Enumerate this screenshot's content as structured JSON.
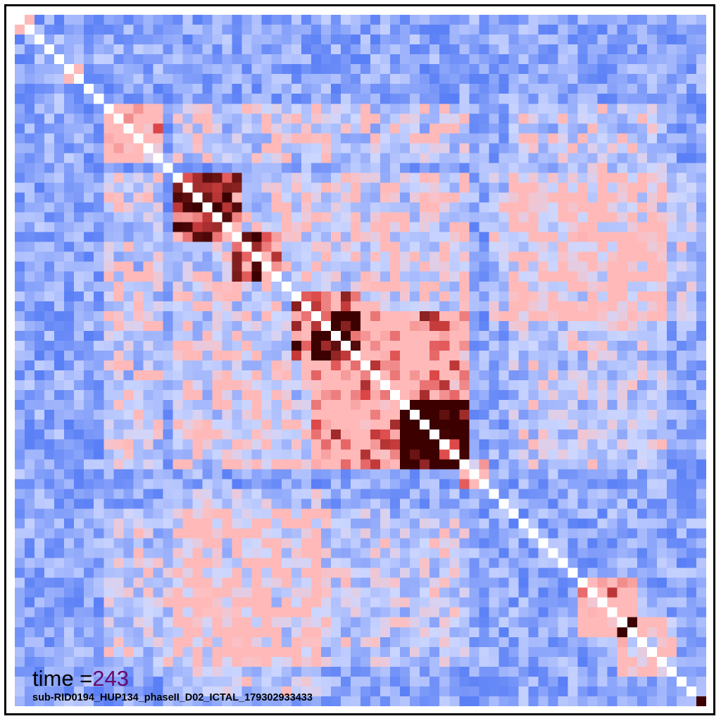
{
  "chart_data": {
    "type": "heatmap",
    "title": "",
    "xlabel": "",
    "ylabel": "",
    "matrix_size": 70,
    "grid": false,
    "colormap": {
      "negative": "#5b7cf5",
      "neutral": "#f2f2ff",
      "positive": "#ffb6b6",
      "strong": "#e05050",
      "max": "#3d0000",
      "diagonal": "#ffffff"
    },
    "clusters": [
      {
        "range": [
          0,
          1
        ],
        "strength": 0.7
      },
      {
        "range": [
          5,
          6
        ],
        "strength": 0.9
      },
      {
        "range": [
          9,
          14
        ],
        "strength": 0.85
      },
      {
        "range": [
          16,
          22
        ],
        "strength": 1.0
      },
      {
        "range": [
          22,
          26
        ],
        "strength": 0.9
      },
      {
        "range": [
          28,
          34
        ],
        "strength": 0.7
      },
      {
        "range": [
          30,
          45
        ],
        "strength": 0.55
      },
      {
        "range": [
          39,
          45
        ],
        "strength": 0.9
      },
      {
        "range": [
          45,
          47
        ],
        "strength": 0.7
      },
      {
        "range": [
          57,
          62
        ],
        "strength": 0.85
      },
      {
        "range": [
          61,
          66
        ],
        "strength": 0.6
      },
      {
        "range": [
          69,
          69
        ],
        "strength": 1.0
      }
    ],
    "cross_blocks": [
      {
        "rows": [
          16,
          45
        ],
        "cols": [
          16,
          45
        ],
        "strength": 0.35
      },
      {
        "rows": [
          9,
          14
        ],
        "cols": [
          16,
          45
        ],
        "strength": 0.3
      },
      {
        "rows": [
          50,
          65
        ],
        "cols": [
          9,
          45
        ],
        "strength": 0.25
      },
      {
        "rows": [
          16,
          30
        ],
        "cols": [
          48,
          68
        ],
        "strength": 0.25
      }
    ]
  },
  "annotation": {
    "time_prefix": "time =",
    "time_value": "243"
  },
  "subtitle": "sub-RID0194_HUP134_phaseII_D02_ICTAL_179302933433"
}
